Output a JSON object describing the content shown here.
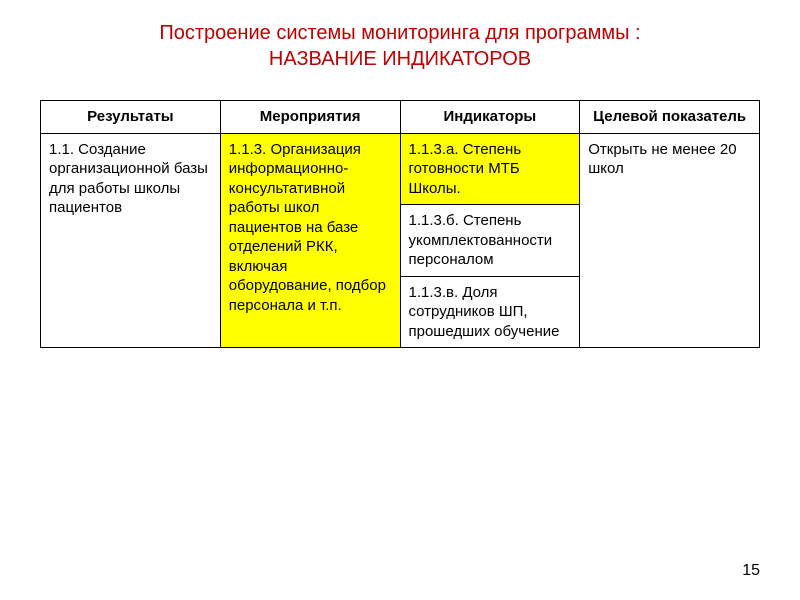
{
  "title_line1": "Построение системы мониторинга для программы :",
  "title_line2": "НАЗВАНИЕ ИНДИКАТОРОВ",
  "title_color": "#c00000",
  "headers": {
    "results": "Результаты",
    "activities": "Мероприятия",
    "indicators": "Индикаторы",
    "target": "Целевой показатель"
  },
  "cells": {
    "results_1": "1.1. Создание организационной базы для работы школы пациентов",
    "activities_1": "1.1.3. Организация информационно-консультативной работы школ пациентов на базе отделений РКК, включая оборудование, подбор персонала и т.п.",
    "indicator_a": "1.1.3.а. Степень готовности МТБ Школы.",
    "indicator_b": "1.1.3.б. Степень укомплектованности персоналом",
    "indicator_c": "1.1.3.в. Доля сотрудников ШП, прошедших обучение",
    "target_1": "Открыть не менее 20 школ"
  },
  "colors": {
    "highlight_bg": "#ffff00",
    "border": "#000000",
    "text": "#000000",
    "background": "#ffffff"
  },
  "typography": {
    "title_fontsize": 20,
    "cell_fontsize": 15,
    "font_family": "Arial, sans-serif"
  },
  "page_number": "15"
}
